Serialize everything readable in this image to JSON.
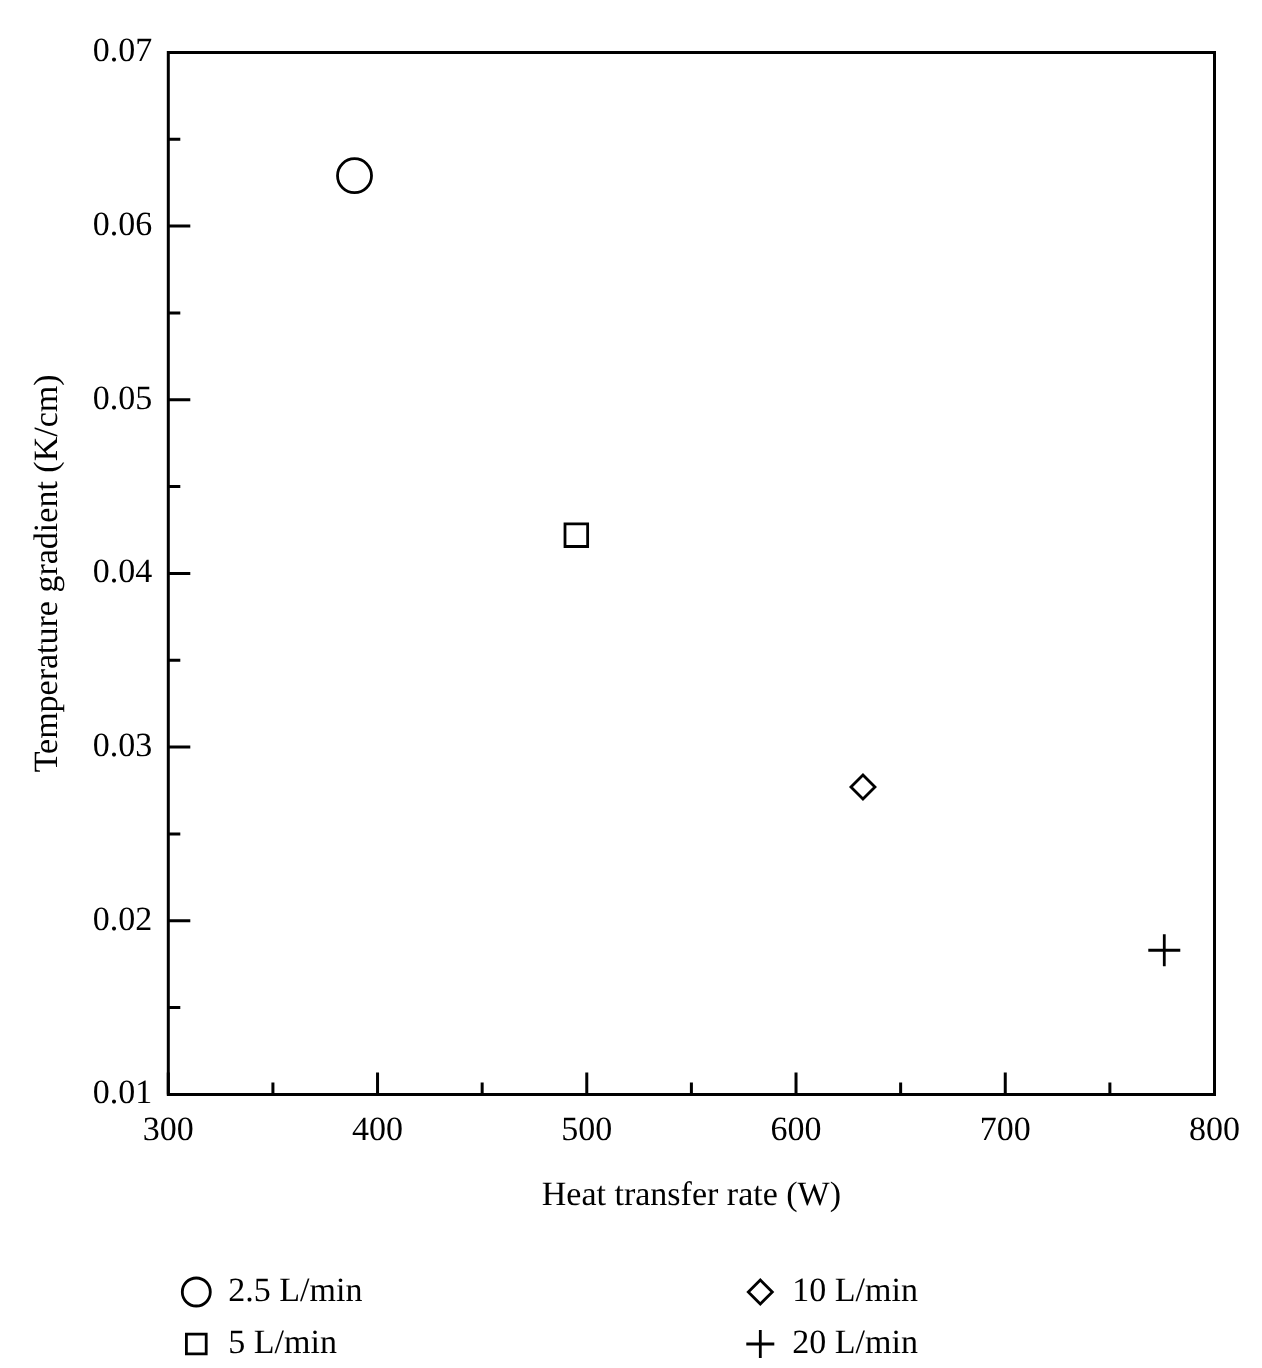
{
  "chart_data": {
    "type": "scatter",
    "xlabel": "Heat transfer rate (W)",
    "ylabel": "Temperature gradient (K/cm)",
    "xlim": [
      300,
      800
    ],
    "ylim": [
      0.01,
      0.07
    ],
    "xticks": [
      300,
      {
        "value": 350,
        "label": null
      },
      400,
      {
        "value": 450,
        "label": null
      },
      500,
      {
        "value": 550,
        "label": null
      },
      600,
      {
        "value": 650,
        "label": null
      },
      700,
      {
        "value": 750,
        "label": null
      },
      800
    ],
    "yticks": [
      0.01,
      {
        "value": 0.015,
        "label": null
      },
      0.02,
      {
        "value": 0.025,
        "label": null
      },
      0.03,
      {
        "value": 0.035,
        "label": null
      },
      0.04,
      {
        "value": 0.045,
        "label": null
      },
      0.05,
      {
        "value": 0.055,
        "label": null
      },
      0.06,
      {
        "value": 0.065,
        "label": null
      },
      0.07
    ],
    "legend": "bottom",
    "series": [
      {
        "name": "2.5 L/min",
        "color": "#000000",
        "marker": "circle",
        "x": [
          389
        ],
        "values": [
          0.0629
        ]
      },
      {
        "name": "5 L/min",
        "color": "#000000",
        "marker": "square",
        "x": [
          495
        ],
        "values": [
          0.0422
        ]
      },
      {
        "name": "10 L/min",
        "color": "#000000",
        "marker": "diamond",
        "x": [
          632
        ],
        "values": [
          0.0277
        ]
      },
      {
        "name": "20 L/min",
        "color": "#000000",
        "marker": "cross",
        "x": [
          776
        ],
        "values": [
          0.0183
        ]
      }
    ]
  }
}
